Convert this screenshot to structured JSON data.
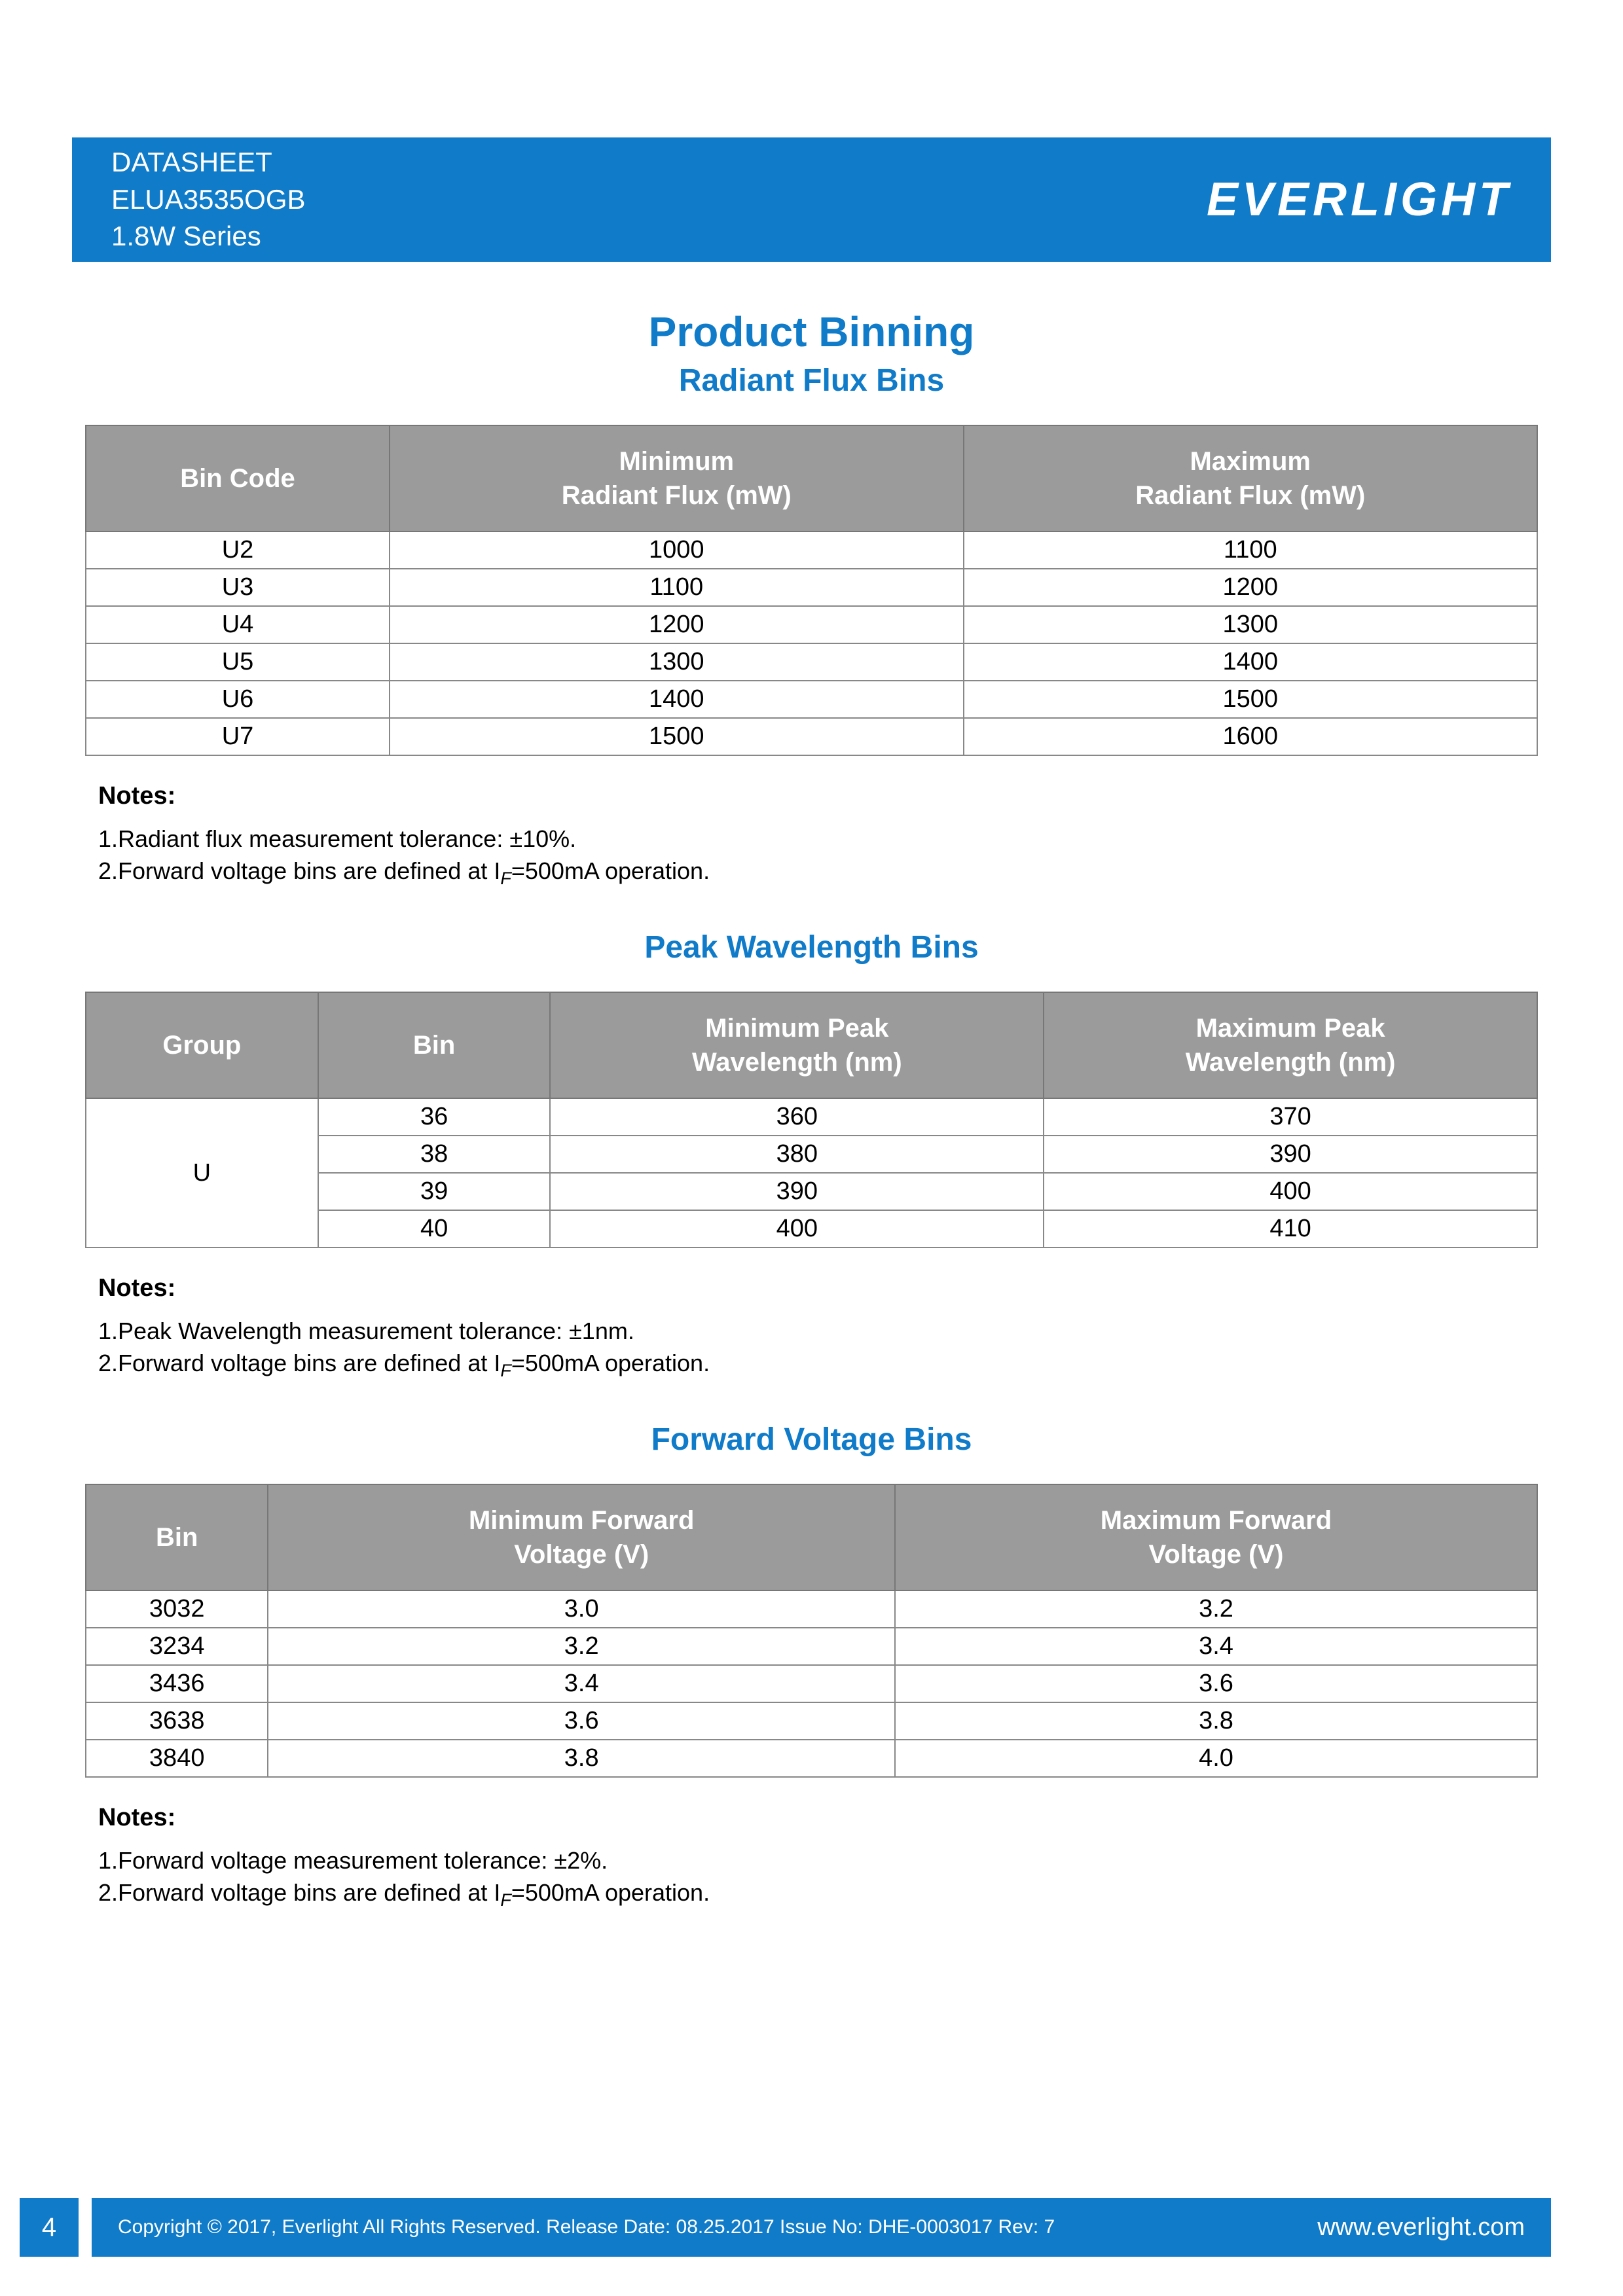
{
  "header": {
    "line1": "DATASHEET",
    "line2": "ELUA3535OGB",
    "line3": "1.8W Series",
    "logo_text": "EVERLIGHT"
  },
  "section_title": "Product Binning",
  "radiant": {
    "title": "Radiant Flux Bins",
    "columns": [
      "Bin Code",
      "Minimum\nRadiant Flux (mW)",
      "Maximum\nRadiant Flux (mW)"
    ],
    "rows": [
      [
        "U2",
        "1000",
        "1100"
      ],
      [
        "U3",
        "1100",
        "1200"
      ],
      [
        "U4",
        "1200",
        "1300"
      ],
      [
        "U5",
        "1300",
        "1400"
      ],
      [
        "U6",
        "1400",
        "1500"
      ],
      [
        "U7",
        "1500",
        "1600"
      ]
    ],
    "notes_label": "Notes:",
    "notes": [
      "1.Radiant flux measurement tolerance: ±10%.",
      "2.Forward voltage bins are defined at I_F=500mA operation."
    ]
  },
  "wavelength": {
    "title": "Peak Wavelength Bins",
    "columns": [
      "Group",
      "Bin",
      "Minimum Peak\nWavelength (nm)",
      "Maximum Peak\nWavelength (nm)"
    ],
    "group_label": "U",
    "rows": [
      [
        "36",
        "360",
        "370"
      ],
      [
        "38",
        "380",
        "390"
      ],
      [
        "39",
        "390",
        "400"
      ],
      [
        "40",
        "400",
        "410"
      ]
    ],
    "notes_label": "Notes:",
    "notes": [
      "1.Peak Wavelength measurement tolerance: ±1nm.",
      "2.Forward voltage bins are defined at I_F=500mA operation."
    ]
  },
  "voltage": {
    "title": "Forward Voltage Bins",
    "columns": [
      "Bin",
      "Minimum Forward\nVoltage (V)",
      "Maximum Forward\nVoltage (V)"
    ],
    "rows": [
      [
        "3032",
        "3.0",
        "3.2"
      ],
      [
        "3234",
        "3.2",
        "3.4"
      ],
      [
        "3436",
        "3.4",
        "3.6"
      ],
      [
        "3638",
        "3.6",
        "3.8"
      ],
      [
        "3840",
        "3.8",
        "4.0"
      ]
    ],
    "notes_label": "Notes:",
    "notes": [
      "1.Forward voltage measurement tolerance: ±2%.",
      "2.Forward voltage bins are defined at I_F=500mA operation."
    ]
  },
  "footer": {
    "page": "4",
    "copyright": "Copyright © 2017, Everlight All Rights Reserved. Release Date: 08.25.2017 Issue No: DHE-0003017 Rev: 7",
    "url": "www.everlight.com"
  },
  "style": {
    "brand_blue": "#0f7bc9",
    "header_gray": "#9b9b9b",
    "text": "#000000",
    "white": "#ffffff"
  }
}
